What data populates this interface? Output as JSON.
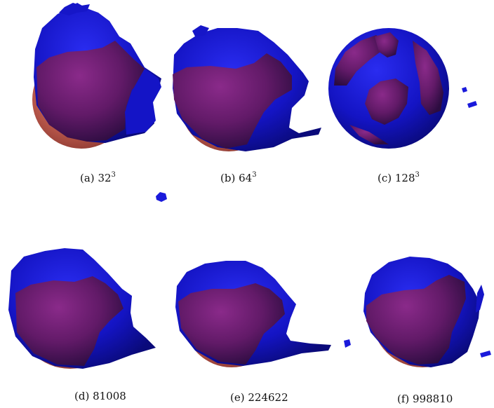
{
  "figure": {
    "panels": [
      {
        "id": "a",
        "label": "(a)",
        "value": "32",
        "exponent": "3"
      },
      {
        "id": "b",
        "label": "(b)",
        "value": "64",
        "exponent": "3"
      },
      {
        "id": "c",
        "label": "(c)",
        "value": "128",
        "exponent": "3"
      },
      {
        "id": "d",
        "label": "(d)",
        "value": "81008",
        "exponent": ""
      },
      {
        "id": "e",
        "label": "(e)",
        "value": "224622",
        "exponent": ""
      },
      {
        "id": "f",
        "label": "(f)",
        "value": "998810",
        "exponent": ""
      }
    ]
  },
  "colors": {
    "reference_sphere": "#b85a52",
    "surface_blue": "#1a1adb",
    "surface_overlap": "#6a1a6c"
  }
}
